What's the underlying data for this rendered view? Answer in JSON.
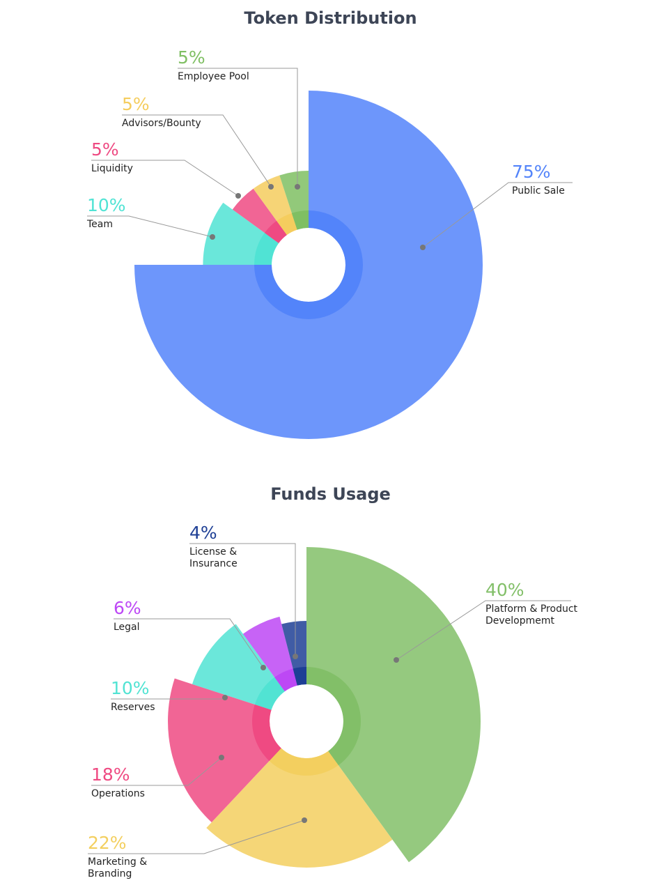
{
  "chart_data": [
    {
      "type": "pie",
      "title": "Token Distribution",
      "categories": [
        "Public Sale",
        "Team",
        "Liquidity",
        "Advisors/Bounty",
        "Employee Pool"
      ],
      "values": [
        75,
        10,
        5,
        5,
        5
      ],
      "value_labels": [
        "75%",
        "10%",
        "5%",
        "5%",
        "5%"
      ],
      "colors": [
        "#5384fa",
        "#50e3d4",
        "#ee4a82",
        "#f5cd5e",
        "#7fbf63"
      ]
    },
    {
      "type": "pie",
      "title": "Funds Usage",
      "categories": [
        "Platform & Product Developmemt",
        "Marketing & Branding",
        "Operations",
        "Reserves",
        "Legal",
        "License & Insurance"
      ],
      "values": [
        40,
        22,
        18,
        10,
        6,
        4
      ],
      "value_labels": [
        "40%",
        "22%",
        "18%",
        "10%",
        "6%",
        "4%"
      ],
      "colors": [
        "#82bf68",
        "#f3cf5f",
        "#ef4a82",
        "#51e3d3",
        "#bd48f5",
        "#1e3f95"
      ]
    }
  ]
}
